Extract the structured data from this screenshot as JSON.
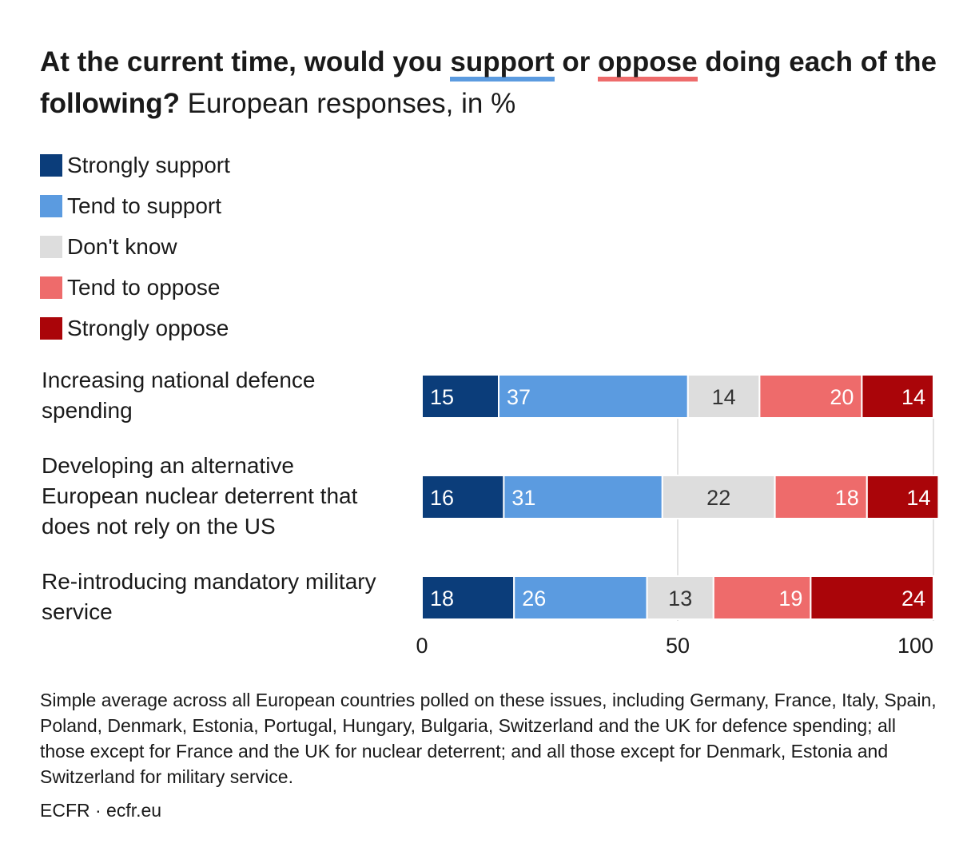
{
  "header": {
    "title_part1": "At the current time, would you ",
    "title_support": "support",
    "title_or": " or ",
    "title_oppose": "oppose",
    "title_part2": " doing each of the following?",
    "subtitle": " European responses, in %"
  },
  "legend": [
    {
      "label": "Strongly support",
      "color": "#0b3d7a"
    },
    {
      "label": "Tend to support",
      "color": "#5b9be0"
    },
    {
      "label": "Don't know",
      "color": "#dddddd"
    },
    {
      "label": "Tend to oppose",
      "color": "#ee6b6b"
    },
    {
      "label": "Strongly oppose",
      "color": "#aa0509"
    }
  ],
  "chart_data": {
    "type": "bar",
    "orientation": "horizontal",
    "stacked": true,
    "title": "At the current time, would you support or oppose doing each of the following? European responses, in %",
    "categories": [
      "Increasing national defence spending",
      "Developing an alternative European nuclear deterrent that does not rely on the US",
      "Re-introducing mandatory military service"
    ],
    "series": [
      {
        "name": "Strongly support",
        "values": [
          15,
          16,
          18
        ],
        "color": "#0b3d7a",
        "label_color": "#ffffff"
      },
      {
        "name": "Tend to support",
        "values": [
          37,
          31,
          26
        ],
        "color": "#5b9be0",
        "label_color": "#ffffff"
      },
      {
        "name": "Don't know",
        "values": [
          14,
          22,
          13
        ],
        "color": "#dddddd",
        "label_color": "#333333"
      },
      {
        "name": "Tend to oppose",
        "values": [
          20,
          18,
          19
        ],
        "color": "#ee6b6b",
        "label_color": "#ffffff"
      },
      {
        "name": "Strongly oppose",
        "values": [
          14,
          14,
          24
        ],
        "color": "#aa0509",
        "label_color": "#ffffff"
      }
    ],
    "xlim": [
      0,
      100
    ],
    "xticks": [
      "0",
      "50",
      "100"
    ],
    "xtick_values": [
      0,
      50,
      100
    ],
    "gridlines": true,
    "legend_position": "top-left"
  },
  "footnote": "Simple average across all European countries polled on these issues, including Germany, France, Italy, Spain, Poland, Denmark, Estonia, Portugal, Hungary, Bulgaria, Switzerland and the UK for defence spending; all those except for France and the UK for nuclear deterrent; and all those except for Denmark, Estonia and Switzerland for military service.",
  "source": "ECFR · ecfr.eu"
}
